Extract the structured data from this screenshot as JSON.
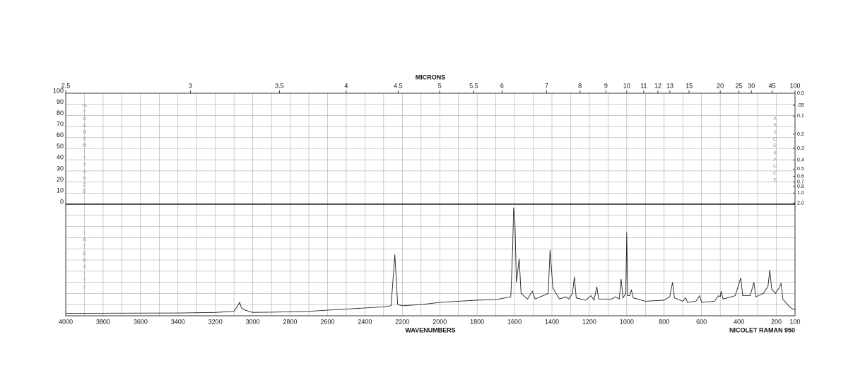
{
  "chart_data": {
    "type": "line",
    "x2label": "MICRONS",
    "xlabel": "WAVENUMBERS",
    "instrument": "NICOLET RAMAN 950",
    "ylabel": "%TRANSMITTANCE",
    "y2label": "ABSORBANCE",
    "intensity_label": "INTENSITY",
    "xlim": [
      4000,
      100
    ],
    "xticks": [
      4000,
      3800,
      3600,
      3400,
      3200,
      3000,
      2800,
      2600,
      2400,
      2200,
      2000,
      1800,
      1600,
      1400,
      1200,
      1000,
      800,
      600,
      400,
      200,
      100
    ],
    "x2ticks": [
      2.5,
      3,
      3.5,
      4,
      4.5,
      5,
      5.5,
      6,
      7,
      8,
      9,
      10,
      11,
      12,
      13,
      15,
      20,
      25,
      30,
      45,
      100
    ],
    "ylim": [
      0,
      100
    ],
    "yticks": [
      0,
      10,
      20,
      30,
      40,
      50,
      60,
      70,
      80,
      90,
      100
    ],
    "y2ticks": [
      {
        "value": 0,
        "label": "0.0"
      },
      {
        "value": 0.05,
        "label": ".05"
      },
      0.1,
      0.2,
      0.3,
      0.4,
      0.5,
      0.6,
      0.7,
      0.8,
      {
        "value": 1,
        "label": "1.0"
      },
      {
        "value": 2,
        "label": "2.0"
      }
    ],
    "grid": true,
    "series": [
      {
        "color": "#222222",
        "ylim": [
          0,
          100
        ],
        "x": [
          4000,
          3400,
          3200,
          3100,
          3080,
          3070,
          3060,
          3040,
          3000,
          2900,
          2700,
          2600,
          2500,
          2400,
          2300,
          2260,
          2240,
          2225,
          2200,
          2100,
          2000,
          1900,
          1800,
          1700,
          1650,
          1620,
          1610,
          1605,
          1598,
          1590,
          1575,
          1565,
          1530,
          1505,
          1490,
          1420,
          1410,
          1395,
          1360,
          1325,
          1310,
          1290,
          1280,
          1270,
          1220,
          1190,
          1175,
          1160,
          1150,
          1080,
          1060,
          1040,
          1030,
          1020,
          1005,
          1000,
          995,
          985,
          975,
          965,
          900,
          800,
          770,
          755,
          745,
          700,
          685,
          675,
          630,
          610,
          600,
          530,
          510,
          500,
          495,
          485,
          460,
          420,
          390,
          380,
          340,
          320,
          310,
          270,
          245,
          235,
          225,
          205,
          185,
          175,
          165,
          130,
          100
        ],
        "values": [
          2.2,
          2.5,
          3,
          4,
          9,
          12,
          7,
          5,
          3,
          3.2,
          4,
          5,
          6,
          7,
          8,
          9,
          55,
          10,
          9,
          10,
          12,
          13,
          14,
          14.5,
          16,
          17,
          60,
          97,
          85,
          30,
          51,
          20,
          15,
          22,
          15,
          20,
          59,
          25,
          15,
          17,
          15,
          20,
          35,
          16,
          14,
          18,
          14,
          26,
          15,
          15,
          17,
          15,
          33,
          16,
          20,
          75,
          18,
          18,
          23,
          16,
          13,
          14,
          17,
          30,
          16,
          13,
          16,
          12,
          13,
          18,
          12,
          13,
          18,
          17,
          22,
          15,
          16,
          18,
          34,
          18,
          18,
          30,
          17,
          20,
          26,
          41,
          24,
          20,
          25,
          29,
          15,
          8,
          5
        ]
      }
    ]
  }
}
